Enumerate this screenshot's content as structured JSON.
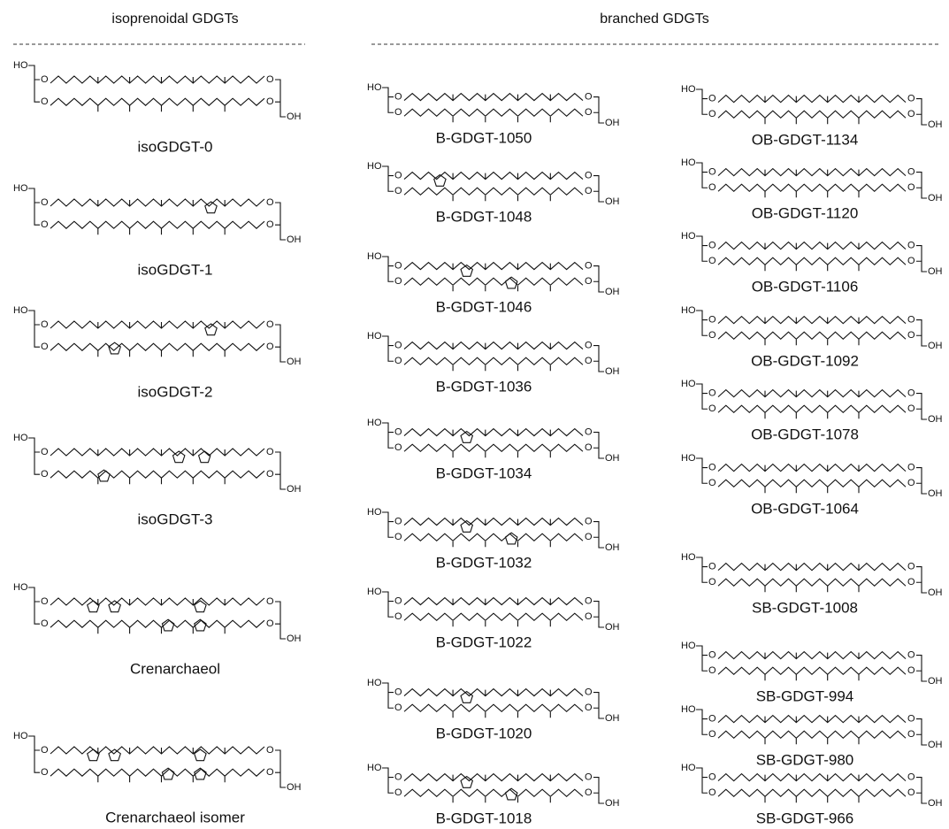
{
  "headers": {
    "isoprenoidal": "isoprenoidal GDGTs",
    "branched": "branched GDGTs"
  },
  "atoms": {
    "ho": "HO",
    "o": "O",
    "oh": "OH"
  },
  "columns": [
    {
      "compounds": [
        "isoGDGT-0",
        "isoGDGT-1",
        "isoGDGT-2",
        "isoGDGT-3",
        "Crenarchaeol",
        "Crenarchaeol isomer"
      ]
    },
    {
      "compounds": [
        "B-GDGT-1050",
        "B-GDGT-1048",
        "B-GDGT-1046",
        "B-GDGT-1036",
        "B-GDGT-1034",
        "B-GDGT-1032",
        "B-GDGT-1022",
        "B-GDGT-1020",
        "B-GDGT-1018"
      ]
    },
    {
      "compounds": [
        "OB-GDGT-1134",
        "OB-GDGT-1120",
        "OB-GDGT-1106",
        "OB-GDGT-1092",
        "OB-GDGT-1078",
        "OB-GDGT-1064",
        "SB-GDGT-1008",
        "SB-GDGT-994",
        "SB-GDGT-980",
        "SB-GDGT-966"
      ]
    }
  ]
}
